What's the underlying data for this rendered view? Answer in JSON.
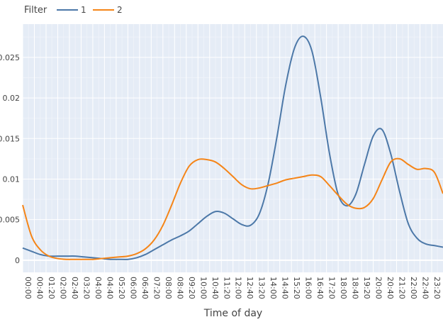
{
  "chart_data": {
    "type": "line",
    "legend": {
      "title": "Filter",
      "placement": "top-left",
      "orientation": "horizontal"
    },
    "xlabel": "Time of day",
    "ylabel": "",
    "x_tick_labels": [
      "00:00",
      "00:40",
      "01:20",
      "02:00",
      "02:40",
      "03:20",
      "04:00",
      "04:40",
      "05:20",
      "06:00",
      "06:40",
      "07:20",
      "08:00",
      "08:40",
      "09:20",
      "10:00",
      "10:40",
      "11:20",
      "12:00",
      "12:40",
      "13:20",
      "14:00",
      "14:40",
      "15:20",
      "16:00",
      "16:40",
      "17:20",
      "18:00",
      "18:40",
      "19:20",
      "20:00",
      "20:40",
      "21:20",
      "22:00",
      "22:40",
      "23:20"
    ],
    "y_tick_labels": [
      "0",
      "0.005",
      "0.01",
      "0.015",
      "0.02",
      "0.025"
    ],
    "y_tick_values": [
      0,
      0.005,
      0.01,
      0.015,
      0.02,
      0.025
    ],
    "ylim": [
      -0.0015,
      0.0291
    ],
    "x_range_hours": [
      0,
      23.98
    ],
    "grid": true,
    "colors": {
      "plot_bg": "#e5ecf6",
      "grid_major": "#ffffff",
      "grid_minor": "#eef2f9"
    },
    "series": [
      {
        "name": "1",
        "color": "#4c78a8",
        "points": [
          [
            0,
            0.0015
          ],
          [
            0.5,
            0.0011
          ],
          [
            1,
            0.0007
          ],
          [
            1.5,
            0.0005
          ],
          [
            2,
            0.0005
          ],
          [
            2.5,
            0.0005
          ],
          [
            3,
            0.0005
          ],
          [
            3.5,
            0.0004
          ],
          [
            4,
            0.0003
          ],
          [
            4.5,
            0.0002
          ],
          [
            5,
            0.0001
          ],
          [
            5.5,
            0.0001
          ],
          [
            6,
            0.0001
          ],
          [
            6.5,
            0.0003
          ],
          [
            7,
            0.0007
          ],
          [
            7.5,
            0.0013
          ],
          [
            8,
            0.0019
          ],
          [
            8.5,
            0.0025
          ],
          [
            9,
            0.003
          ],
          [
            9.5,
            0.0036
          ],
          [
            10,
            0.0045
          ],
          [
            10.5,
            0.0054
          ],
          [
            11,
            0.006
          ],
          [
            11.5,
            0.0058
          ],
          [
            12,
            0.0051
          ],
          [
            12.5,
            0.0044
          ],
          [
            13,
            0.0043
          ],
          [
            13.5,
            0.0057
          ],
          [
            14,
            0.0094
          ],
          [
            14.5,
            0.0151
          ],
          [
            15,
            0.0215
          ],
          [
            15.5,
            0.0261
          ],
          [
            16,
            0.0276
          ],
          [
            16.5,
            0.0258
          ],
          [
            17,
            0.0201
          ],
          [
            17.5,
            0.0132
          ],
          [
            18,
            0.0081
          ],
          [
            18.5,
            0.0067
          ],
          [
            19,
            0.0081
          ],
          [
            19.5,
            0.0118
          ],
          [
            20,
            0.0153
          ],
          [
            20.5,
            0.0161
          ],
          [
            21,
            0.0131
          ],
          [
            21.5,
            0.0085
          ],
          [
            22,
            0.0045
          ],
          [
            22.5,
            0.0027
          ],
          [
            23,
            0.002
          ],
          [
            23.5,
            0.0018
          ],
          [
            23.98,
            0.0016
          ]
        ]
      },
      {
        "name": "2",
        "color": "#f58518",
        "points": [
          [
            0,
            0.0068
          ],
          [
            0.5,
            0.003
          ],
          [
            1,
            0.0013
          ],
          [
            1.5,
            0.0005
          ],
          [
            2,
            0.0002
          ],
          [
            2.5,
            0.0001
          ],
          [
            3,
            0.0001
          ],
          [
            3.5,
            0.0001
          ],
          [
            4,
            0.0001
          ],
          [
            4.5,
            0.0002
          ],
          [
            5,
            0.0003
          ],
          [
            5.5,
            0.0004
          ],
          [
            6,
            0.0005
          ],
          [
            6.5,
            0.0008
          ],
          [
            7,
            0.0014
          ],
          [
            7.5,
            0.0025
          ],
          [
            8,
            0.0043
          ],
          [
            8.5,
            0.0068
          ],
          [
            9,
            0.0095
          ],
          [
            9.5,
            0.0116
          ],
          [
            10,
            0.0124
          ],
          [
            10.5,
            0.0124
          ],
          [
            11,
            0.0121
          ],
          [
            11.5,
            0.0113
          ],
          [
            12,
            0.0103
          ],
          [
            12.5,
            0.0093
          ],
          [
            13,
            0.0088
          ],
          [
            13.5,
            0.0089
          ],
          [
            14,
            0.0092
          ],
          [
            14.5,
            0.0095
          ],
          [
            15,
            0.0099
          ],
          [
            15.5,
            0.0101
          ],
          [
            16,
            0.0103
          ],
          [
            16.5,
            0.0105
          ],
          [
            17,
            0.0103
          ],
          [
            17.5,
            0.0092
          ],
          [
            18,
            0.008
          ],
          [
            18.5,
            0.0069
          ],
          [
            19,
            0.0064
          ],
          [
            19.5,
            0.0065
          ],
          [
            20,
            0.0076
          ],
          [
            20.5,
            0.0099
          ],
          [
            21,
            0.0121
          ],
          [
            21.5,
            0.0125
          ],
          [
            22,
            0.0118
          ],
          [
            22.5,
            0.0112
          ],
          [
            23,
            0.0113
          ],
          [
            23.5,
            0.0108
          ],
          [
            23.98,
            0.0082
          ]
        ]
      }
    ]
  }
}
